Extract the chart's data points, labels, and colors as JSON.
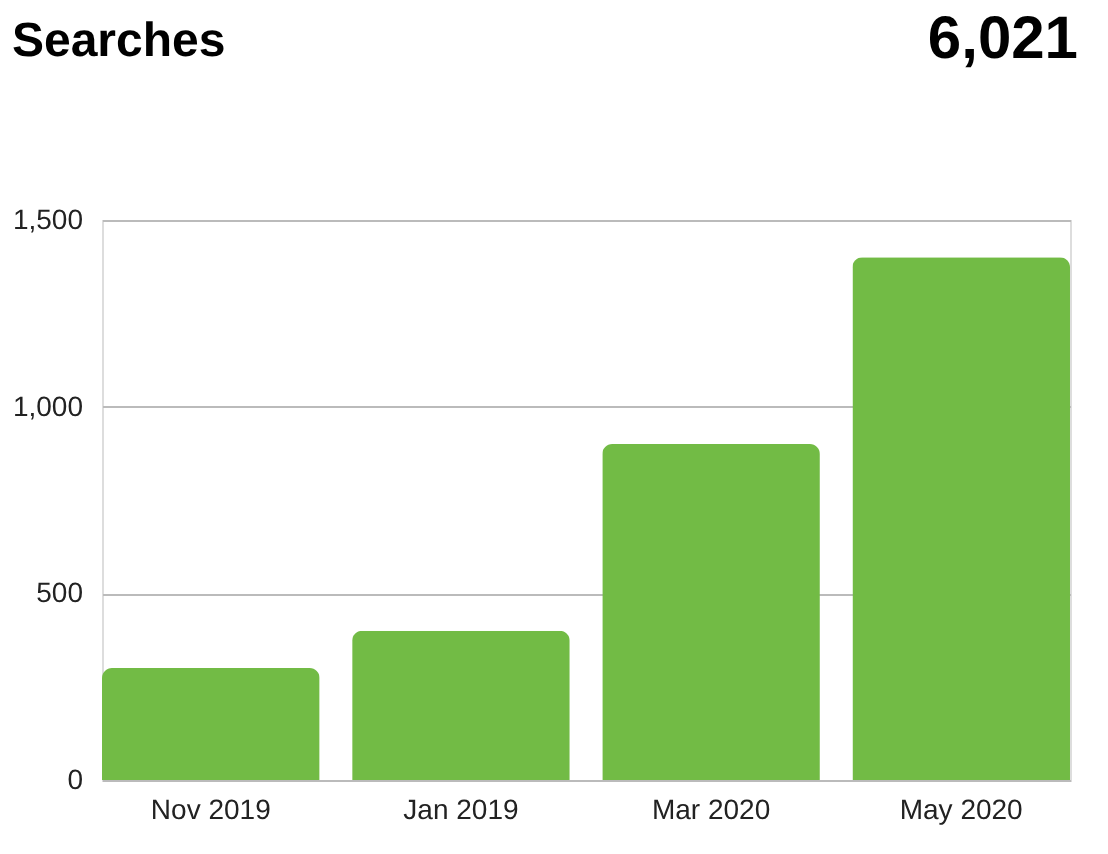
{
  "chart_data": {
    "type": "bar",
    "title": "Searches",
    "annotations": [
      "6,021"
    ],
    "categories": [
      "Nov 2019",
      "Jan 2019",
      "Mar 2020",
      "May 2020"
    ],
    "values": [
      300,
      400,
      900,
      1400
    ],
    "color": "#72bb45",
    "ylim": [
      0,
      1500
    ],
    "yticks": [
      0,
      {
        "value": 500,
        "label": "500"
      },
      {
        "value": 1000,
        "label": "1,000"
      },
      {
        "value": 1500,
        "label": "1,500"
      }
    ],
    "grid": "y"
  }
}
